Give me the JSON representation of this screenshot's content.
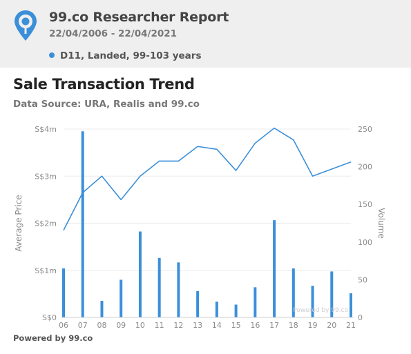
{
  "header": {
    "title": "99.co Researcher Report",
    "date_range": "22/04/2006 - 22/04/2021",
    "filter_label": "D11, Landed, 99-103 years",
    "logo_icon": "location-pin-icon"
  },
  "colors": {
    "accent": "#3b8fd9",
    "header_bg": "#efefef"
  },
  "main": {
    "title": "Sale Transaction Trend",
    "data_source": "Data Source: URA, Realis and 99.co"
  },
  "footer": {
    "powered_by": "Powered by 99.co"
  },
  "chart_data": {
    "type": "bar+line",
    "categories": [
      "06",
      "07",
      "08",
      "09",
      "10",
      "11",
      "12",
      "13",
      "14",
      "15",
      "16",
      "17",
      "18",
      "19",
      "20",
      "21"
    ],
    "series": [
      {
        "type": "bar",
        "axis": "right",
        "values": [
          65,
          247,
          22,
          50,
          114,
          79,
          73,
          35,
          21,
          17,
          40,
          129,
          65,
          42,
          61,
          32
        ]
      },
      {
        "type": "line",
        "axis": "left",
        "values": [
          1850000,
          2650000,
          3000000,
          2500000,
          3000000,
          3320000,
          3320000,
          3630000,
          3570000,
          3120000,
          3700000,
          4020000,
          3770000,
          3000000,
          3150000,
          3300000
        ]
      }
    ],
    "ylabel": "Average Price",
    "y2label": "Volume",
    "xlabel": "",
    "yticks": [
      "S$0",
      "S$1m",
      "S$2m",
      "S$3m",
      "S$4m"
    ],
    "ylim": [
      0,
      4000000
    ],
    "y2ticks": [
      "0",
      "50",
      "100",
      "150",
      "200",
      "250"
    ],
    "y2lim": [
      0,
      250
    ],
    "grid": true,
    "watermark": "Powered by 99.co"
  }
}
